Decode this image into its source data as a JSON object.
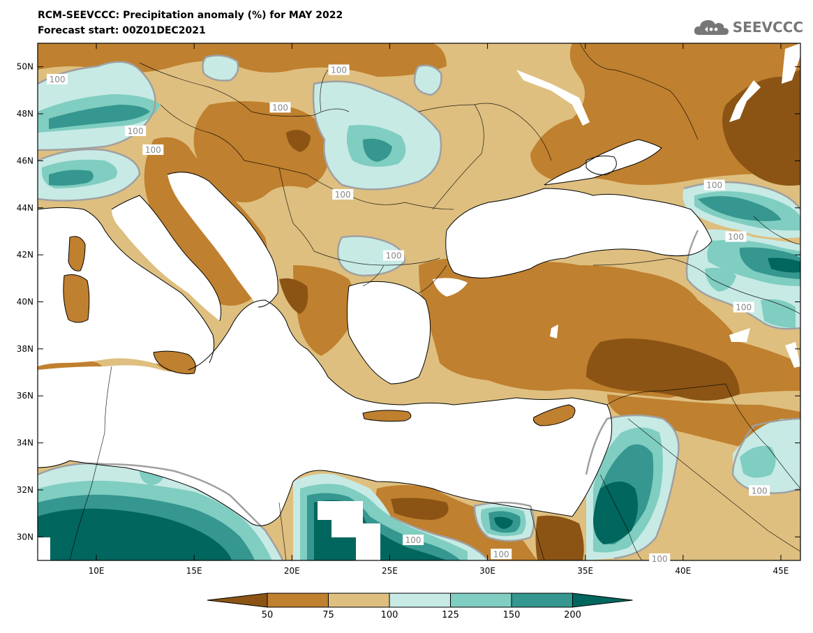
{
  "title": "RCM-SEEVCCC: Precipitation anomaly (%) for MAY 2022",
  "subtitle": "Forecast start: 00Z01DEC2021",
  "logo_text": "SEEVCCC",
  "logo_icon": "cloud-icon",
  "map": {
    "lon_range": [
      7,
      46
    ],
    "lat_range": [
      29,
      51
    ],
    "lon_ticks": [
      "10E",
      "15E",
      "20E",
      "25E",
      "30E",
      "35E",
      "40E",
      "45E"
    ],
    "lon_tick_values": [
      10,
      15,
      20,
      25,
      30,
      35,
      40,
      45
    ],
    "lat_ticks": [
      "30N",
      "32N",
      "34N",
      "36N",
      "38N",
      "40N",
      "42N",
      "44N",
      "46N",
      "48N",
      "50N"
    ],
    "lat_tick_values": [
      30,
      32,
      34,
      36,
      38,
      40,
      42,
      44,
      46,
      48,
      50
    ],
    "contour_labels": [
      {
        "text": "100",
        "lon": 8.0,
        "lat": 49.4
      },
      {
        "text": "100",
        "lon": 22.4,
        "lat": 49.8
      },
      {
        "text": "100",
        "lon": 19.4,
        "lat": 48.2
      },
      {
        "text": "100",
        "lon": 12.0,
        "lat": 47.2
      },
      {
        "text": "100",
        "lon": 12.9,
        "lat": 46.4
      },
      {
        "text": "100",
        "lon": 22.6,
        "lat": 44.5
      },
      {
        "text": "100",
        "lon": 25.2,
        "lat": 41.9
      },
      {
        "text": "100",
        "lon": 41.6,
        "lat": 44.9
      },
      {
        "text": "100",
        "lon": 42.7,
        "lat": 42.7
      },
      {
        "text": "100",
        "lon": 43.1,
        "lat": 39.7
      },
      {
        "text": "100",
        "lon": 43.9,
        "lat": 31.9
      },
      {
        "text": "100",
        "lon": 26.2,
        "lat": 29.8
      },
      {
        "text": "100",
        "lon": 30.7,
        "lat": 29.2
      },
      {
        "text": "100",
        "lon": 38.8,
        "lat": 29.0
      }
    ],
    "palette": {
      "below_50": "#8B5414",
      "50_75": "#BF802F",
      "75_100": "#DEBF7F",
      "100_125": "#C7EAE5",
      "125_150": "#80CDC1",
      "150_200": "#35978F",
      "above_200": "#01665E",
      "sea": "#FFFFFF",
      "contour_100": "#A0A0A0"
    }
  },
  "legend": {
    "labels": [
      "50",
      "75",
      "100",
      "125",
      "150",
      "200"
    ],
    "colors": [
      "#8B5414",
      "#BF802F",
      "#DEBF7F",
      "#C7EAE5",
      "#80CDC1",
      "#35978F",
      "#01665E"
    ]
  }
}
